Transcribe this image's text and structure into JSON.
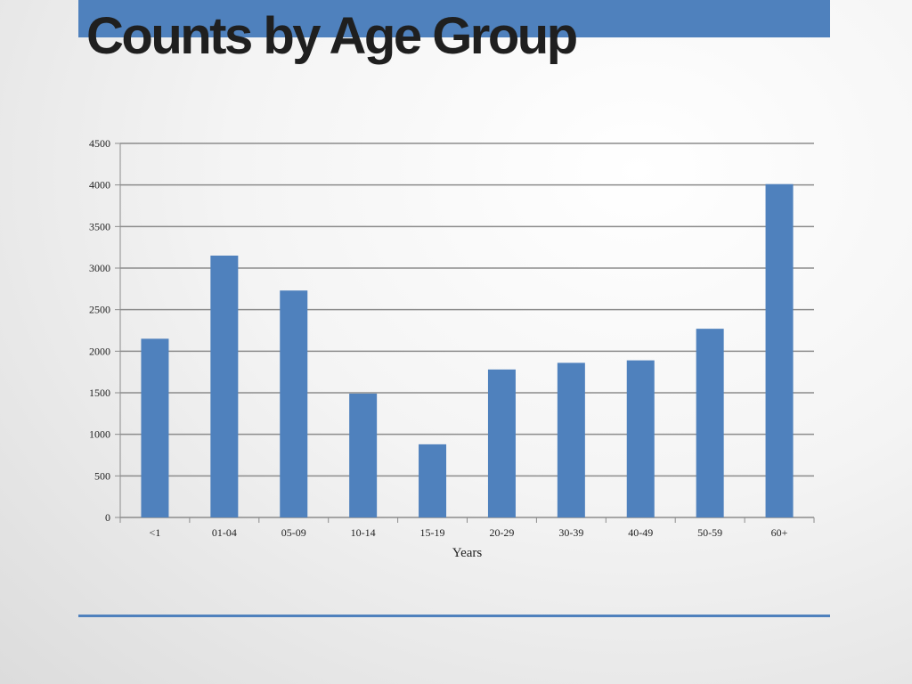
{
  "slide": {
    "title": "Counts by Age Group",
    "accent_color": "#4f81bd"
  },
  "chart_data": {
    "type": "bar",
    "categories": [
      "<1",
      "01-04",
      "05-09",
      "10-14",
      "15-19",
      "20-29",
      "30-39",
      "40-49",
      "50-59",
      "60+"
    ],
    "series": [
      {
        "values": [
          2150,
          3150,
          2730,
          1490,
          880,
          1780,
          1860,
          1890,
          2270,
          4010
        ],
        "color": "#4f81bd"
      }
    ],
    "xlabel": "Years",
    "ylabel": "",
    "ylim": [
      0,
      4500
    ],
    "yticks": [
      0,
      500,
      1000,
      1500,
      2000,
      2500,
      3000,
      3500,
      4000,
      4500
    ],
    "grid": true,
    "legend": "none"
  }
}
